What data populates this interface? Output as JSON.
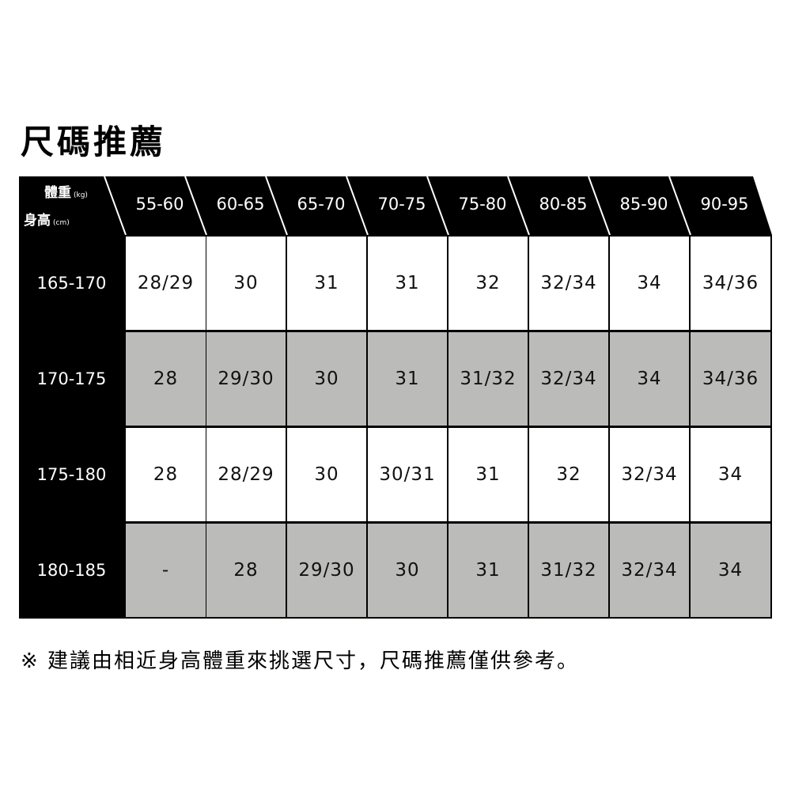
{
  "title": "尺碼推薦",
  "corner": {
    "weight_label": "體重",
    "weight_unit": "(kg)",
    "height_label": "身高",
    "height_unit": "(cm)"
  },
  "weights": [
    "55-60",
    "60-65",
    "65-70",
    "70-75",
    "75-80",
    "80-85",
    "85-90",
    "90-95"
  ],
  "rows": [
    {
      "height": "165-170",
      "sizes": [
        "28/29",
        "30",
        "31",
        "31",
        "32",
        "32/34",
        "34",
        "34/36"
      ]
    },
    {
      "height": "170-175",
      "sizes": [
        "28",
        "29/30",
        "30",
        "31",
        "31/32",
        "32/34",
        "34",
        "34/36"
      ]
    },
    {
      "height": "175-180",
      "sizes": [
        "28",
        "28/29",
        "30",
        "30/31",
        "31",
        "32",
        "32/34",
        "34"
      ]
    },
    {
      "height": "180-185",
      "sizes": [
        "-",
        "28",
        "29/30",
        "30",
        "31",
        "31/32",
        "32/34",
        "34"
      ]
    }
  ],
  "note": "※ 建議由相近身高體重來挑選尺寸，尺碼推薦僅供參考。",
  "colors": {
    "header": "#000000",
    "row_alt": "#bbbcb9",
    "row": "#ffffff"
  }
}
